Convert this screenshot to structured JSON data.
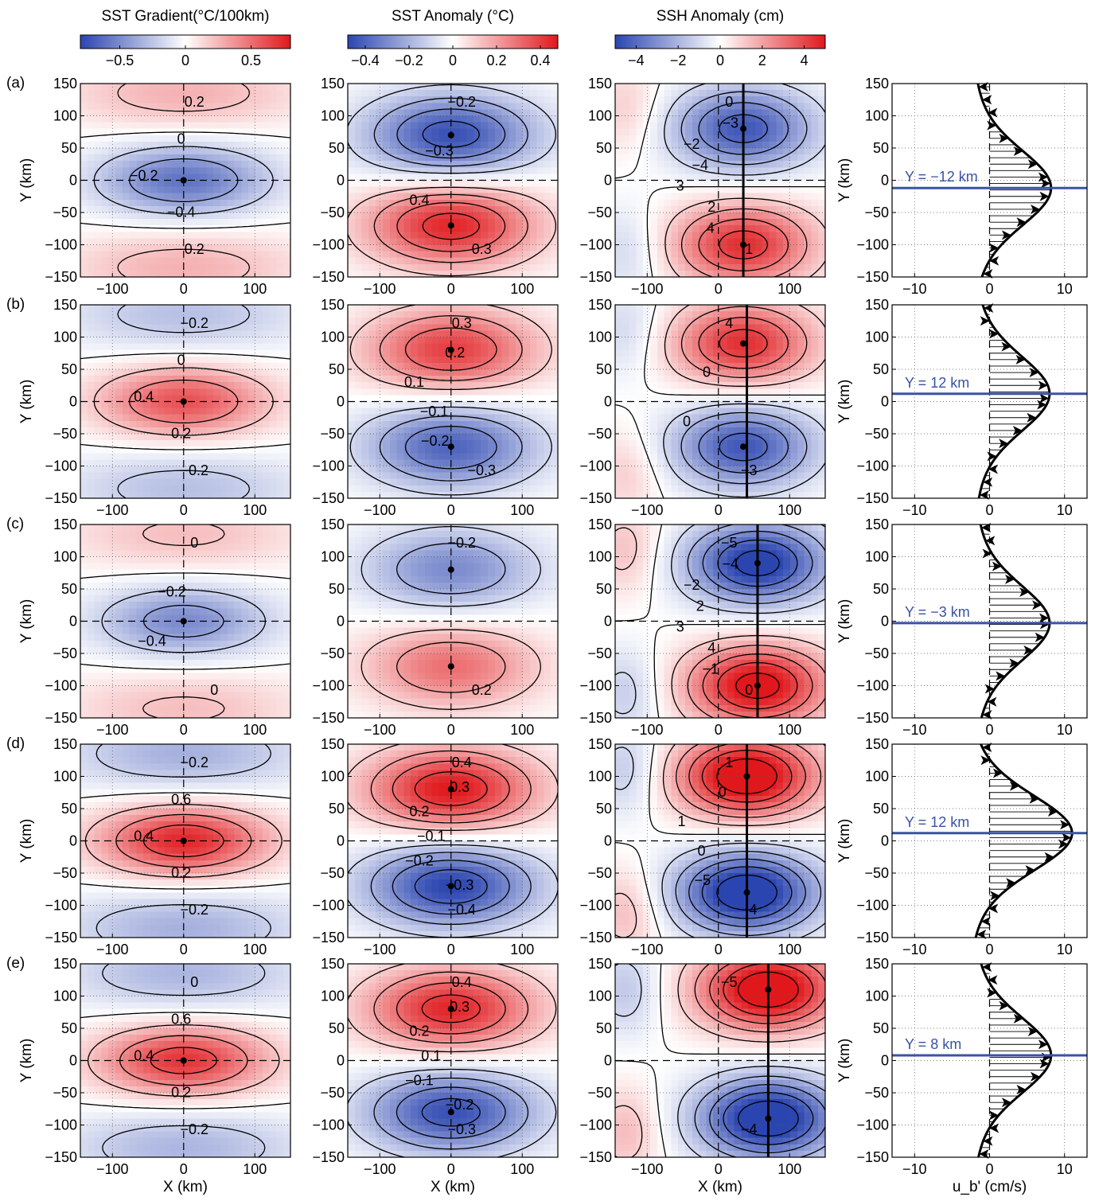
{
  "colors": {
    "negative": "#2b45b0",
    "zero": "#ffffff",
    "positive": "#e0181c",
    "marker_line": "#3953a4",
    "contour": "#000000"
  },
  "chart_data": {
    "type": "heatmap",
    "columns": [
      {
        "title": "SST Gradient(°C/100km)",
        "colorbar_ticks": [
          "−0.5",
          "0",
          "0.5"
        ],
        "clim": [
          -0.8,
          0.8
        ]
      },
      {
        "title": "SST Anomaly (°C)",
        "colorbar_ticks": [
          "−0.4",
          "−0.2",
          "0",
          "0.2",
          "0.4"
        ],
        "clim": [
          -0.48,
          0.48
        ]
      },
      {
        "title": "SSH Anomaly (cm)",
        "colorbar_ticks": [
          "−4",
          "−2",
          "0",
          "2",
          "4"
        ],
        "clim": [
          -5,
          5
        ]
      }
    ],
    "map_axes": {
      "xlabel": "X (km)",
      "ylabel": "Y (km)",
      "xlim": [
        -145,
        150
      ],
      "ylim": [
        -150,
        150
      ],
      "xticks": [
        "−100",
        "0",
        "100"
      ],
      "yticks": [
        "150",
        "100",
        "50",
        "0",
        "−50",
        "−100",
        "−150"
      ]
    },
    "profile_axes": {
      "xlabel": "u_b' (cm/s)",
      "ylabel": "Y (km)",
      "xlim": [
        -13,
        13
      ],
      "ylim": [
        -150,
        150
      ],
      "xticks": [
        "−10",
        "0",
        "10"
      ],
      "yticks": [
        "150",
        "100",
        "50",
        "0",
        "−50",
        "−100",
        "−150"
      ]
    },
    "rows": [
      {
        "label": "(a)",
        "grad": {
          "sign": -1,
          "amp": 0.6,
          "level_labels": [
            "0.2",
            "0",
            "−0.2",
            "−0.4",
            "0.2"
          ]
        },
        "sst": {
          "sign": -1,
          "amp": 0.45,
          "cx": 0,
          "north_y": 70,
          "south_y": -70,
          "level_labels": [
            "−0.2",
            "−0.3",
            "0.4",
            "0.3"
          ]
        },
        "ssh": {
          "sign": -1,
          "amp": 4.5,
          "cx": 35,
          "north_y": 80,
          "south_y": -100,
          "line_x": 35,
          "level_labels": [
            "0",
            "−3",
            "−2",
            "−4",
            "3",
            "2",
            "4",
            "1"
          ]
        },
        "profile": {
          "y_label": "Y = −12 km",
          "y_value": -12,
          "amp": 8.2,
          "offset": 2.5
        }
      },
      {
        "label": "(b)",
        "grad": {
          "sign": 1,
          "amp": 0.6,
          "level_labels": [
            "−0.2",
            "0",
            "0.4",
            "0.2",
            "−0.2"
          ]
        },
        "sst": {
          "sign": 1,
          "amp": 0.4,
          "cx": 0,
          "north_y": 80,
          "south_y": -70,
          "level_labels": [
            "0.3",
            "0.2",
            "0.1",
            "−0.1",
            "−0.2",
            "−0.3"
          ]
        },
        "ssh": {
          "sign": 1,
          "amp": 4.5,
          "cx": 35,
          "north_y": 90,
          "south_y": -70,
          "line_x": 40,
          "level_labels": [
            "4",
            "0",
            "0",
            "−3"
          ]
        },
        "profile": {
          "y_label": "Y = 12 km",
          "y_value": 12,
          "amp": 8.0,
          "offset": 2.3
        }
      },
      {
        "label": "(c)",
        "grad": {
          "sign": -1,
          "amp": 0.5,
          "level_labels": [
            "0",
            "−0.2",
            "−0.4",
            "0"
          ]
        },
        "sst": {
          "sign": -1,
          "amp": 0.3,
          "cx": 0,
          "north_y": 80,
          "south_y": -70,
          "level_labels": [
            "−0.2",
            "0.2"
          ]
        },
        "ssh": {
          "sign": -1,
          "amp": 5.5,
          "cx": 55,
          "north_y": 90,
          "south_y": -100,
          "line_x": 55,
          "level_labels": [
            "−5",
            "−4",
            "−2",
            "2",
            "3",
            "4",
            "−1",
            "0"
          ]
        },
        "profile": {
          "y_label": "Y = −3 km",
          "y_value": -3,
          "amp": 8.0,
          "offset": 2.2
        }
      },
      {
        "label": "(d)",
        "grad": {
          "sign": 1,
          "amp": 0.75,
          "level_labels": [
            "−0.2",
            "0.6",
            "0.4",
            "0.2",
            "−0.2"
          ]
        },
        "sst": {
          "sign": 1,
          "amp": 0.48,
          "cx": 0,
          "north_y": 80,
          "south_y": -70,
          "level_labels": [
            "0.4",
            "0.3",
            "0.2",
            "−0.1",
            "−0.2",
            "−0.3",
            "−0.4"
          ]
        },
        "ssh": {
          "sign": 1,
          "amp": 6.0,
          "cx": 40,
          "north_y": 100,
          "south_y": -80,
          "line_x": 40,
          "level_labels": [
            "1",
            "0",
            "1",
            "0",
            "−5",
            "−4"
          ]
        },
        "profile": {
          "y_label": "Y = 12 km",
          "y_value": 12,
          "amp": 11.0,
          "offset": 3.0
        }
      },
      {
        "label": "(e)",
        "grad": {
          "sign": 1,
          "amp": 0.7,
          "level_labels": [
            "0",
            "0.6",
            "0.4",
            "0.2",
            "−0.2"
          ]
        },
        "sst": {
          "sign": 1,
          "amp": 0.45,
          "cx": 0,
          "north_y": 80,
          "south_y": -80,
          "level_labels": [
            "0.4",
            "0.3",
            "0.2",
            "0.1",
            "−0.1",
            "−0.2",
            "−0.3"
          ]
        },
        "ssh": {
          "sign": 1,
          "amp": 6.0,
          "cx": 70,
          "north_y": 110,
          "south_y": -90,
          "line_x": 70,
          "level_labels": [
            "−5",
            "−4"
          ]
        },
        "profile": {
          "y_label": "Y = 8 km",
          "y_value": 8,
          "amp": 8.2,
          "offset": 2.5
        }
      }
    ]
  }
}
